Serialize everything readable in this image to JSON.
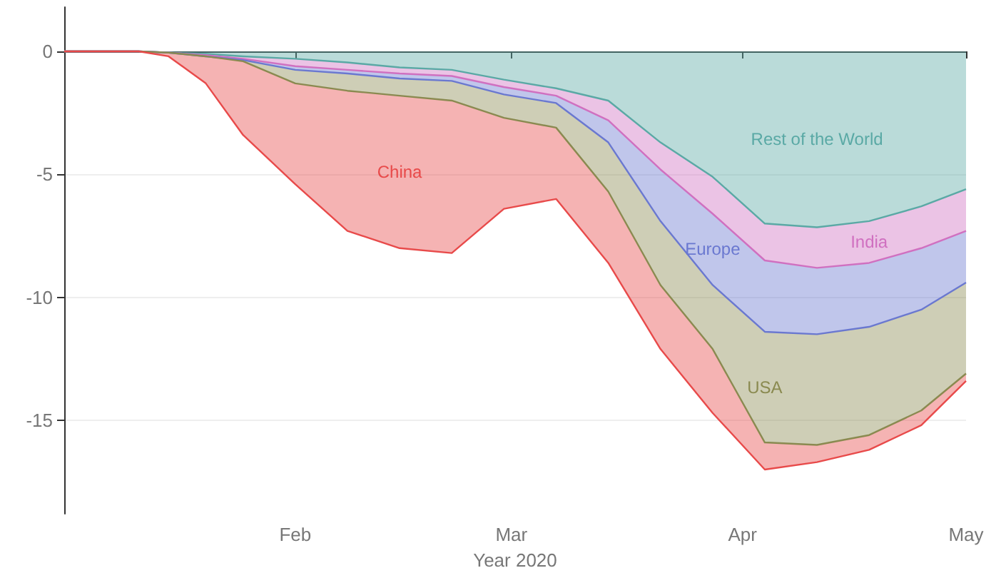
{
  "chart_data": {
    "type": "area",
    "stacked": true,
    "xlabel": "Year 2020",
    "x": [
      "2020-01-01",
      "2020-01-11",
      "2020-01-15",
      "2020-01-20",
      "2020-01-25",
      "2020-02-01",
      "2020-02-08",
      "2020-02-15",
      "2020-02-22",
      "2020-02-29",
      "2020-03-07",
      "2020-03-14",
      "2020-03-21",
      "2020-03-28",
      "2020-04-04",
      "2020-04-11",
      "2020-04-18",
      "2020-04-25",
      "2020-05-01"
    ],
    "series": [
      {
        "name": "Rest of the World",
        "color": "#5aa9a5",
        "values": [
          0,
          0,
          -0.05,
          -0.1,
          -0.2,
          -0.3,
          -0.45,
          -0.65,
          -0.75,
          -1.15,
          -1.5,
          -2.0,
          -3.7,
          -5.1,
          -7.0,
          -7.15,
          -6.9,
          -6.3,
          -5.6
        ]
      },
      {
        "name": "India",
        "color": "#d070c0",
        "values": [
          0,
          0,
          0,
          -0.05,
          -0.1,
          -0.3,
          -0.3,
          -0.25,
          -0.25,
          -0.3,
          -0.3,
          -0.8,
          -1.1,
          -1.5,
          -1.5,
          -1.65,
          -1.7,
          -1.7,
          -1.7
        ]
      },
      {
        "name": "Europe",
        "color": "#6a78d0",
        "values": [
          0,
          0,
          0,
          -0.05,
          -0.05,
          -0.15,
          -0.15,
          -0.2,
          -0.2,
          -0.3,
          -0.3,
          -0.9,
          -2.1,
          -2.9,
          -2.9,
          -2.7,
          -2.6,
          -2.5,
          -2.1
        ]
      },
      {
        "name": "USA",
        "color": "#8a8a50",
        "values": [
          0,
          0,
          0,
          0,
          -0.05,
          -0.55,
          -0.7,
          -0.7,
          -0.8,
          -0.95,
          -1.0,
          -2.0,
          -2.6,
          -2.6,
          -4.5,
          -4.5,
          -4.4,
          -4.1,
          -3.7
        ]
      },
      {
        "name": "China",
        "color": "#e84a4a",
        "values": [
          0,
          0,
          -0.15,
          -1.1,
          -3.0,
          -4.1,
          -5.7,
          -6.2,
          -6.2,
          -3.7,
          -2.9,
          -2.9,
          -2.6,
          -2.6,
          -1.1,
          -0.7,
          -0.6,
          -0.6,
          -0.3
        ]
      }
    ],
    "xlim": [
      "2020-01-01",
      "2020-05-01"
    ],
    "xticks": [
      {
        "value": "2020-02-01",
        "label": "Feb"
      },
      {
        "value": "2020-03-01",
        "label": "Mar"
      },
      {
        "value": "2020-04-01",
        "label": "Apr"
      },
      {
        "value": "2020-05-01",
        "label": "May"
      }
    ],
    "ylim": [
      -18.8,
      1.8
    ],
    "yticks": [
      0,
      -5,
      -10,
      -15
    ],
    "grid": "y",
    "legend": false,
    "marker": "none",
    "line_style": "solid"
  }
}
